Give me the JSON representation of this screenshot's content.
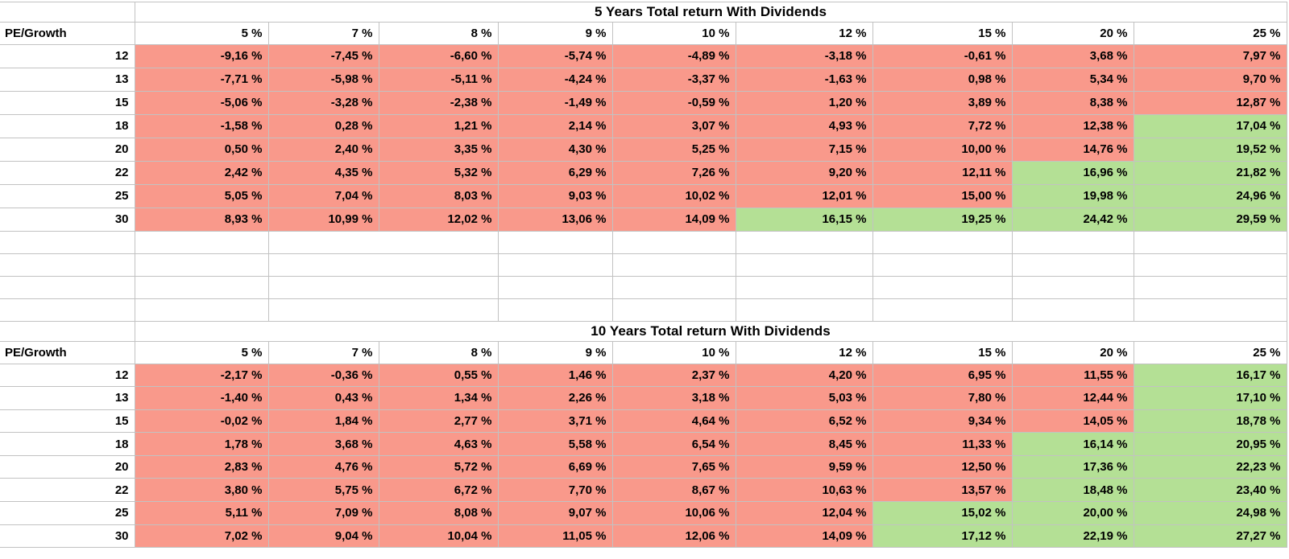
{
  "sheet": {
    "corner_label": "PE/Growth",
    "growth_headers": [
      "5 %",
      "7 %",
      "8 %",
      "9 %",
      "10 %",
      "12 %",
      "15 %",
      "20 %",
      "25 %"
    ],
    "colors": {
      "loss_fill": "#F9998B",
      "gain_fill": "#B4E095",
      "gridline": "#C2C2C2",
      "text": "#000000"
    },
    "tables": [
      {
        "title": "5 Years Total return With Dividends",
        "rows": [
          {
            "pe": "12",
            "values": [
              "-9,16 %",
              "-7,45 %",
              "-6,60 %",
              "-5,74 %",
              "-4,89 %",
              "-3,18 %",
              "-0,61 %",
              "3,68 %",
              "7,97 %"
            ],
            "green_from": 9
          },
          {
            "pe": "13",
            "values": [
              "-7,71 %",
              "-5,98 %",
              "-5,11 %",
              "-4,24 %",
              "-3,37 %",
              "-1,63 %",
              "0,98 %",
              "5,34 %",
              "9,70 %"
            ],
            "green_from": 9
          },
          {
            "pe": "15",
            "values": [
              "-5,06 %",
              "-3,28 %",
              "-2,38 %",
              "-1,49 %",
              "-0,59 %",
              "1,20 %",
              "3,89 %",
              "8,38 %",
              "12,87 %"
            ],
            "green_from": 9
          },
          {
            "pe": "18",
            "values": [
              "-1,58 %",
              "0,28 %",
              "1,21 %",
              "2,14 %",
              "3,07 %",
              "4,93 %",
              "7,72 %",
              "12,38 %",
              "17,04 %"
            ],
            "green_from": 8
          },
          {
            "pe": "20",
            "values": [
              "0,50 %",
              "2,40 %",
              "3,35 %",
              "4,30 %",
              "5,25 %",
              "7,15 %",
              "10,00 %",
              "14,76 %",
              "19,52 %"
            ],
            "green_from": 8
          },
          {
            "pe": "22",
            "values": [
              "2,42 %",
              "4,35 %",
              "5,32 %",
              "6,29 %",
              "7,26 %",
              "9,20 %",
              "12,11 %",
              "16,96 %",
              "21,82 %"
            ],
            "green_from": 7
          },
          {
            "pe": "25",
            "values": [
              "5,05 %",
              "7,04 %",
              "8,03 %",
              "9,03 %",
              "10,02 %",
              "12,01 %",
              "15,00 %",
              "19,98 %",
              "24,96 %"
            ],
            "green_from": 7
          },
          {
            "pe": "30",
            "values": [
              "8,93 %",
              "10,99 %",
              "12,02 %",
              "13,06 %",
              "14,09 %",
              "16,15 %",
              "19,25 %",
              "24,42 %",
              "29,59 %"
            ],
            "green_from": 5
          }
        ]
      },
      {
        "title": "10 Years Total return With Dividends",
        "rows": [
          {
            "pe": "12",
            "values": [
              "-2,17 %",
              "-0,36 %",
              "0,55 %",
              "1,46 %",
              "2,37 %",
              "4,20 %",
              "6,95 %",
              "11,55 %",
              "16,17 %"
            ],
            "green_from": 8
          },
          {
            "pe": "13",
            "values": [
              "-1,40 %",
              "0,43 %",
              "1,34 %",
              "2,26 %",
              "3,18 %",
              "5,03 %",
              "7,80 %",
              "12,44 %",
              "17,10 %"
            ],
            "green_from": 8
          },
          {
            "pe": "15",
            "values": [
              "-0,02 %",
              "1,84 %",
              "2,77 %",
              "3,71 %",
              "4,64 %",
              "6,52 %",
              "9,34 %",
              "14,05 %",
              "18,78 %"
            ],
            "green_from": 8
          },
          {
            "pe": "18",
            "values": [
              "1,78 %",
              "3,68 %",
              "4,63 %",
              "5,58 %",
              "6,54 %",
              "8,45 %",
              "11,33 %",
              "16,14 %",
              "20,95 %"
            ],
            "green_from": 7
          },
          {
            "pe": "20",
            "values": [
              "2,83 %",
              "4,76 %",
              "5,72 %",
              "6,69 %",
              "7,65 %",
              "9,59 %",
              "12,50 %",
              "17,36 %",
              "22,23 %"
            ],
            "green_from": 7
          },
          {
            "pe": "22",
            "values": [
              "3,80 %",
              "5,75 %",
              "6,72 %",
              "7,70 %",
              "8,67 %",
              "10,63 %",
              "13,57 %",
              "18,48 %",
              "23,40 %"
            ],
            "green_from": 7
          },
          {
            "pe": "25",
            "values": [
              "5,11 %",
              "7,09 %",
              "8,08 %",
              "9,07 %",
              "10,06 %",
              "12,04 %",
              "15,02 %",
              "20,00 %",
              "24,98 %"
            ],
            "green_from": 6
          },
          {
            "pe": "30",
            "values": [
              "7,02 %",
              "9,04 %",
              "10,04 %",
              "11,05 %",
              "12,06 %",
              "14,09 %",
              "17,12 %",
              "22,19 %",
              "27,27 %"
            ],
            "green_from": 6
          }
        ]
      }
    ]
  }
}
